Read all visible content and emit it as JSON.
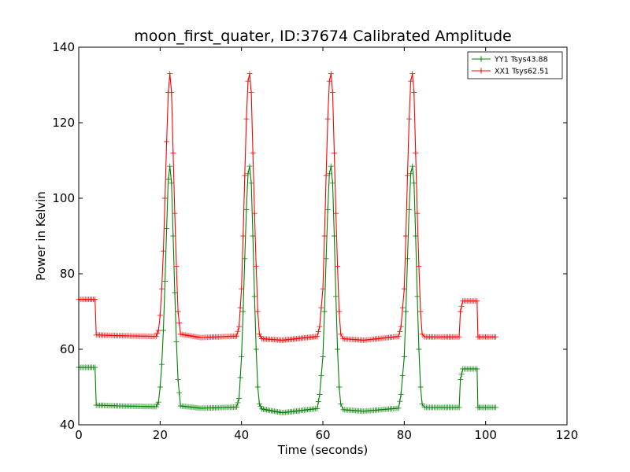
{
  "chart_data": {
    "type": "line",
    "title": "moon_first_quater, ID:37674 Calibrated Amplitude",
    "xlabel": "Time (seconds)",
    "ylabel": "Power in Kelvin",
    "xlim": [
      0,
      120
    ],
    "ylim": [
      40,
      140
    ],
    "xticks": [
      0,
      20,
      40,
      60,
      80,
      100,
      120
    ],
    "xtick_labels": [
      "0",
      "20",
      "40",
      "60",
      "80",
      "100",
      "120"
    ],
    "yticks": [
      40,
      60,
      80,
      100,
      120,
      140
    ],
    "ytick_labels": [
      "40",
      "60",
      "80",
      "100",
      "120",
      "140"
    ],
    "grid": false,
    "legend_position": "top-right",
    "marker": "+",
    "series": [
      {
        "name": "YY1 Tsys43.88",
        "color": "#008000",
        "x": [
          0,
          4,
          4.3,
          10,
          19,
          19.6,
          20,
          20.4,
          20.8,
          21.2,
          21.6,
          22,
          22.4,
          22.8,
          23.2,
          23.6,
          24,
          24.4,
          25,
          30,
          38.8,
          39.4,
          40,
          40.4,
          40.8,
          41.2,
          41.6,
          42,
          42.4,
          42.8,
          43.2,
          43.6,
          44,
          44.4,
          45,
          50,
          58.6,
          59.2,
          60,
          60.4,
          60.8,
          61.2,
          61.6,
          62,
          62.4,
          62.8,
          63.2,
          63.6,
          64,
          64.4,
          65,
          70,
          78.6,
          79.2,
          80,
          80.4,
          80.8,
          81.2,
          81.6,
          82,
          82.4,
          82.8,
          83.2,
          83.6,
          84,
          84.4,
          85,
          93.5,
          93.8,
          94.4,
          97.9,
          98.1,
          98.7,
          102.5
        ],
        "values": [
          55.2,
          55.2,
          45.2,
          45,
          44.8,
          46,
          50,
          56,
          65,
          78,
          92,
          105,
          108.5,
          104,
          90,
          75,
          62,
          52,
          45,
          44.4,
          44.7,
          47,
          58,
          70,
          84,
          97,
          106.5,
          108.5,
          104,
          90,
          74,
          60,
          50,
          45.5,
          44.2,
          43.2,
          44.3,
          48,
          58,
          70,
          84,
          97,
          106.5,
          108.5,
          104,
          90,
          74,
          60,
          50,
          45.5,
          44,
          43.6,
          44.4,
          48,
          58,
          70,
          84,
          97,
          106.5,
          108.5,
          104,
          90,
          74,
          60,
          50,
          45.5,
          44.6,
          44.6,
          52,
          54.8,
          54.8,
          44.6,
          44.6,
          44.6
        ]
      },
      {
        "name": "XX1 Tsys62.51",
        "color": "#ff0000",
        "x": [
          0,
          4,
          4.3,
          10,
          19,
          19.6,
          20,
          20.4,
          20.8,
          21.2,
          21.6,
          22,
          22.4,
          22.8,
          23.2,
          23.6,
          24,
          24.4,
          25,
          30,
          38.8,
          39.4,
          40,
          40.4,
          40.8,
          41.2,
          41.6,
          42,
          42.4,
          42.8,
          43.2,
          43.6,
          44,
          44.4,
          45,
          50,
          58.6,
          59.2,
          60,
          60.4,
          60.8,
          61.2,
          61.6,
          62,
          62.4,
          62.8,
          63.2,
          63.6,
          64,
          64.4,
          65,
          70,
          78.6,
          79.2,
          80,
          80.4,
          80.8,
          81.2,
          81.6,
          82,
          82.4,
          82.8,
          83.2,
          83.6,
          84,
          84.4,
          85,
          93.5,
          93.8,
          94.4,
          97.9,
          98.1,
          98.7,
          102.5
        ],
        "values": [
          73.2,
          73.2,
          63.8,
          63.6,
          63.4,
          65,
          69,
          76,
          86,
          100,
          115,
          128,
          133,
          128,
          112,
          96,
          82,
          70,
          64,
          63.1,
          63.5,
          66,
          76,
          90,
          106,
          121,
          131,
          133,
          128,
          112,
          96,
          82,
          70,
          64,
          62.8,
          62.4,
          63.4,
          66,
          76,
          90,
          106,
          121,
          131,
          133,
          128,
          112,
          96,
          82,
          70,
          64,
          62.8,
          62.4,
          63.4,
          66,
          76,
          90,
          106,
          121,
          131,
          133,
          128,
          112,
          96,
          82,
          70,
          64,
          63.3,
          63.3,
          70,
          72.8,
          72.8,
          63.3,
          63.3,
          63.3
        ]
      }
    ]
  }
}
